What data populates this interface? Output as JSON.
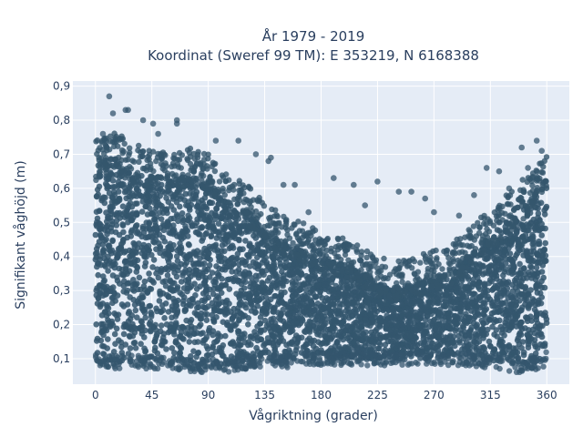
{
  "chart_data": {
    "type": "scatter",
    "title_line1": "År 1979 - 2019",
    "title_line2": "Koordinat (Sweref 99 TM): E 353219, N 6168388",
    "xlabel": "Vågriktning (grader)",
    "ylabel": "Signifikant våghöjd (m)",
    "xlim": [
      -18,
      378
    ],
    "ylim": [
      0.025,
      0.915
    ],
    "xticks": [
      0,
      45,
      90,
      135,
      180,
      225,
      270,
      315,
      360
    ],
    "xtick_labels": [
      "0",
      "45",
      "90",
      "135",
      "180",
      "225",
      "270",
      "315",
      "360"
    ],
    "yticks": [
      0.1,
      0.2,
      0.3,
      0.4,
      0.5,
      0.6,
      0.7,
      0.8,
      0.9
    ],
    "ytick_labels": [
      "0,1",
      "0,2",
      "0,3",
      "0,4",
      "0,5",
      "0,6",
      "0,7",
      "0,8",
      "0,9"
    ],
    "grid": true,
    "marker_color": "#34566d",
    "background_color": "#e5ecf6",
    "envelope": {
      "x": [
        0,
        15,
        30,
        45,
        60,
        75,
        90,
        105,
        120,
        135,
        150,
        165,
        180,
        195,
        210,
        225,
        240,
        255,
        270,
        285,
        300,
        315,
        330,
        345,
        360
      ],
      "y_min": [
        0.08,
        0.07,
        0.07,
        0.07,
        0.06,
        0.06,
        0.06,
        0.06,
        0.07,
        0.07,
        0.07,
        0.08,
        0.08,
        0.08,
        0.08,
        0.08,
        0.08,
        0.08,
        0.08,
        0.08,
        0.08,
        0.07,
        0.06,
        0.06,
        0.08
      ],
      "y_max": [
        0.7,
        0.73,
        0.69,
        0.68,
        0.66,
        0.68,
        0.66,
        0.6,
        0.58,
        0.52,
        0.48,
        0.46,
        0.43,
        0.42,
        0.4,
        0.36,
        0.35,
        0.36,
        0.38,
        0.4,
        0.45,
        0.5,
        0.55,
        0.6,
        0.67
      ]
    },
    "outliers": [
      {
        "x": 11,
        "y": 0.87
      },
      {
        "x": 14,
        "y": 0.82
      },
      {
        "x": 24,
        "y": 0.83
      },
      {
        "x": 26,
        "y": 0.83
      },
      {
        "x": 38,
        "y": 0.8
      },
      {
        "x": 46,
        "y": 0.79
      },
      {
        "x": 65,
        "y": 0.8
      },
      {
        "x": 65,
        "y": 0.79
      },
      {
        "x": 6,
        "y": 0.76
      },
      {
        "x": 50,
        "y": 0.76
      },
      {
        "x": 96,
        "y": 0.74
      },
      {
        "x": 114,
        "y": 0.74
      },
      {
        "x": 128,
        "y": 0.7
      },
      {
        "x": 138,
        "y": 0.68
      },
      {
        "x": 140,
        "y": 0.69
      },
      {
        "x": 150,
        "y": 0.61
      },
      {
        "x": 159,
        "y": 0.61
      },
      {
        "x": 190,
        "y": 0.63
      },
      {
        "x": 206,
        "y": 0.61
      },
      {
        "x": 225,
        "y": 0.62
      },
      {
        "x": 242,
        "y": 0.59
      },
      {
        "x": 252,
        "y": 0.59
      },
      {
        "x": 263,
        "y": 0.57
      },
      {
        "x": 302,
        "y": 0.58
      },
      {
        "x": 312,
        "y": 0.66
      },
      {
        "x": 322,
        "y": 0.65
      },
      {
        "x": 340,
        "y": 0.72
      },
      {
        "x": 352,
        "y": 0.74
      },
      {
        "x": 356,
        "y": 0.71
      },
      {
        "x": 345,
        "y": 0.66
      },
      {
        "x": 170,
        "y": 0.53
      },
      {
        "x": 215,
        "y": 0.55
      },
      {
        "x": 270,
        "y": 0.53
      },
      {
        "x": 290,
        "y": 0.52
      },
      {
        "x": 330,
        "y": 0.6
      }
    ]
  }
}
